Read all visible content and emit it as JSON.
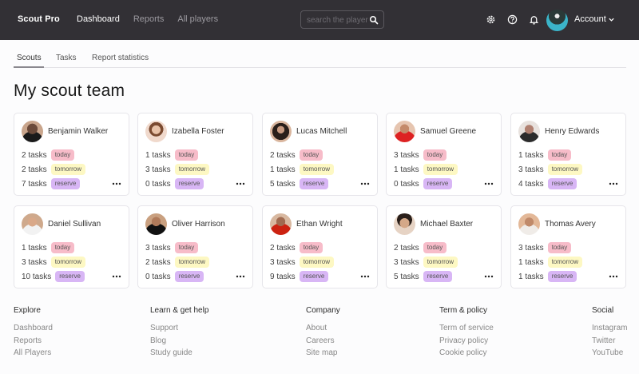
{
  "header": {
    "logo": "Scout Pro",
    "nav": [
      {
        "label": "Dashboard",
        "active": true
      },
      {
        "label": "Reports",
        "active": false
      },
      {
        "label": "All players",
        "active": false
      }
    ],
    "search": {
      "placeholder": "search the player",
      "value": ""
    },
    "icons": [
      "gear-icon",
      "help-icon",
      "bell-icon"
    ],
    "account_label": "Account"
  },
  "tabs": [
    {
      "label": "Scouts",
      "active": true
    },
    {
      "label": "Tasks",
      "active": false
    },
    {
      "label": "Report statistics",
      "active": false
    }
  ],
  "page_title": "My scout team",
  "badges": {
    "today": "today",
    "tomorrow": "tomorrow",
    "reserve": "reserve"
  },
  "colors": {
    "today": "#f7bcc9",
    "tomorrow": "#fdf8c3",
    "reserve": "#d8b6f5",
    "topbar": "#323035"
  },
  "scouts": [
    {
      "name": "Benjamin Walker",
      "today": "2 tasks",
      "tomorrow": "2 tasks",
      "reserve": "7 tasks"
    },
    {
      "name": "Izabella Foster",
      "today": "1 tasks",
      "tomorrow": "3 tasks",
      "reserve": "0 tasks"
    },
    {
      "name": "Lucas Mitchell",
      "today": "2 tasks",
      "tomorrow": "1 tasks",
      "reserve": "5 tasks"
    },
    {
      "name": "Samuel Greene",
      "today": "3 tasks",
      "tomorrow": "1 tasks",
      "reserve": "0 tasks"
    },
    {
      "name": "Henry Edwards",
      "today": "1 tasks",
      "tomorrow": "3 tasks",
      "reserve": "4 tasks"
    },
    {
      "name": "Daniel Sullivan",
      "today": "1 tasks",
      "tomorrow": "3 tasks",
      "reserve": "10 tasks"
    },
    {
      "name": "Oliver Harrison",
      "today": "3 tasks",
      "tomorrow": "2 tasks",
      "reserve": "0 tasks"
    },
    {
      "name": "Ethan Wright",
      "today": "2 tasks",
      "tomorrow": "3 tasks",
      "reserve": "9 tasks"
    },
    {
      "name": "Michael Baxter",
      "today": "2 tasks",
      "tomorrow": "3 tasks",
      "reserve": "5 tasks"
    },
    {
      "name": "Thomas Avery",
      "today": "3 tasks",
      "tomorrow": "1 tasks",
      "reserve": "1 tasks"
    }
  ],
  "footer": [
    {
      "heading": "Explore",
      "links": [
        "Dashboard",
        "Reports",
        "All Players"
      ]
    },
    {
      "heading": "Learn & get help",
      "links": [
        "Support",
        "Blog",
        "Study guide"
      ]
    },
    {
      "heading": "Company",
      "links": [
        "About",
        "Careers",
        "Site map"
      ]
    },
    {
      "heading": "Term & policy",
      "links": [
        "Term of service",
        "Privacy policy",
        "Cookie policy"
      ]
    },
    {
      "heading": "Social",
      "links": [
        "Instagram",
        "Twitter",
        "YouTube"
      ]
    }
  ]
}
